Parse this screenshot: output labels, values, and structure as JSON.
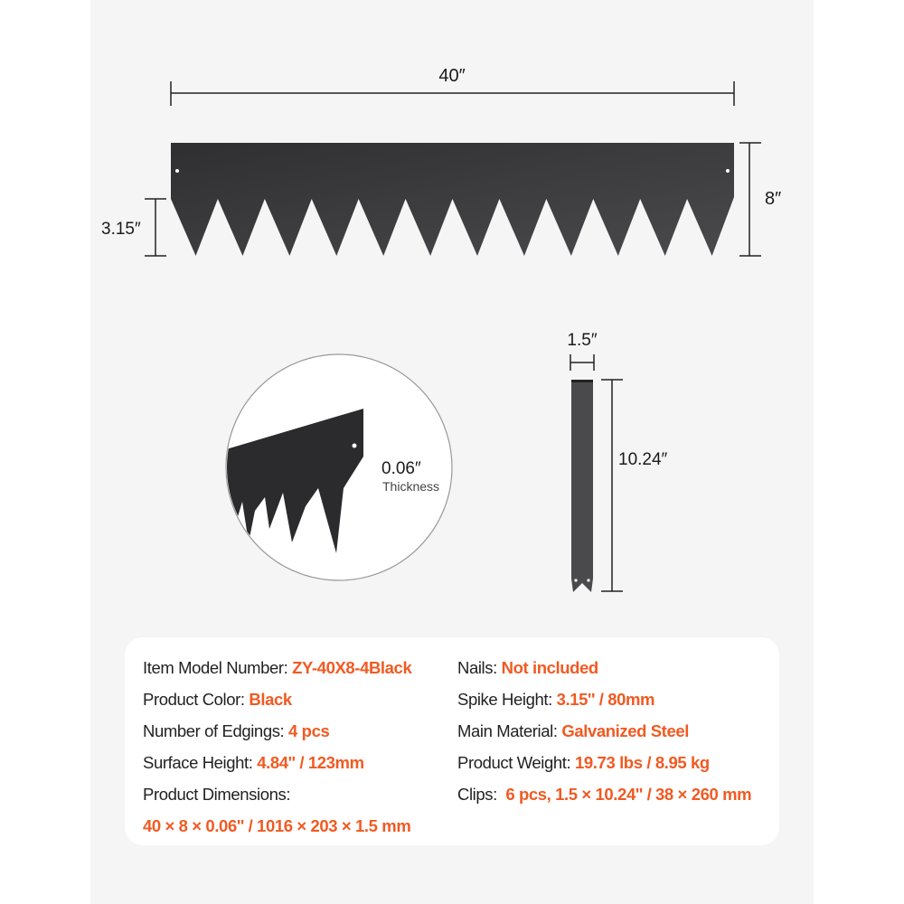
{
  "dimensions": {
    "length": "40″",
    "height": "8″",
    "spike_height": "3.15″",
    "thickness_value": "0.06″",
    "thickness_label": "Thickness",
    "clip_width": "1.5″",
    "clip_height": "10.24″"
  },
  "colors": {
    "accent": "#f15a22",
    "product": "#3a3a3c",
    "panel": "#f5f5f5"
  },
  "specs": {
    "left": [
      {
        "label": "Item Model Number: ",
        "value": "ZY-40X8-4Black"
      },
      {
        "label": "Product Color: ",
        "value": "Black"
      },
      {
        "label": "Number of Edgings: ",
        "value": "4 pcs"
      },
      {
        "label": "Surface Height: ",
        "value": "4.84'' / 123mm"
      },
      {
        "label": "Product Dimensions:",
        "value": "40 × 8 × 0.06'' / 1016 × 203 × 1.5 mm"
      }
    ],
    "right": [
      {
        "label": "Nails: ",
        "value": "Not included"
      },
      {
        "label": "Spike Height: ",
        "value": "3.15'' / 80mm"
      },
      {
        "label": "Main Material: ",
        "value": "Galvanized Steel"
      },
      {
        "label": "Product Weight: ",
        "value": "19.73 lbs / 8.95 kg"
      },
      {
        "label": "Clips:  ",
        "value": "6 pcs, 1.5 × 10.24'' / 38 × 260 mm"
      }
    ]
  }
}
